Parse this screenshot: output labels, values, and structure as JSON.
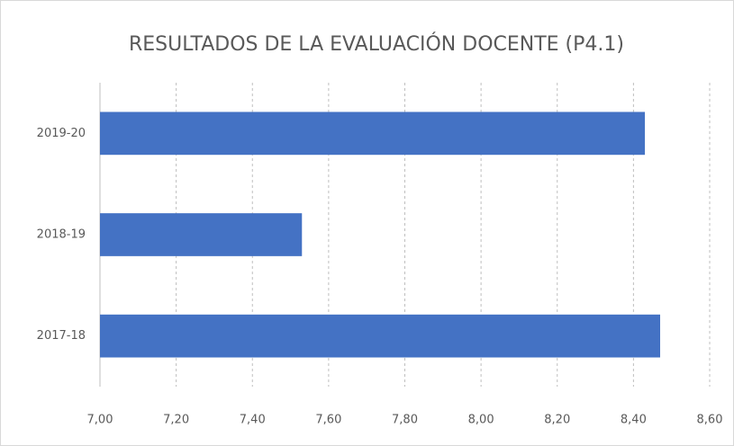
{
  "chart_data": {
    "type": "hbar",
    "title": "RESULTADOS DE LA EVALUACIÓN DOCENTE (P4.1)",
    "categories": [
      "2019-20",
      "2018-19",
      "2017-18"
    ],
    "values": [
      8.43,
      7.53,
      8.47
    ],
    "color": "#4472c4",
    "xlim": [
      7,
      8.6
    ],
    "xticks": [
      {
        "value": 7,
        "label": "7,00"
      },
      {
        "value": 7.2,
        "label": "7,20"
      },
      {
        "value": 7.4,
        "label": "7,40"
      },
      {
        "value": 7.6,
        "label": "7,60"
      },
      {
        "value": 7.8,
        "label": "7,80"
      },
      {
        "value": 8,
        "label": "8,00"
      },
      {
        "value": 8.2,
        "label": "8,20"
      },
      {
        "value": 8.4,
        "label": "8,40"
      },
      {
        "value": 8.6,
        "label": "8,60"
      }
    ],
    "grid": true
  }
}
